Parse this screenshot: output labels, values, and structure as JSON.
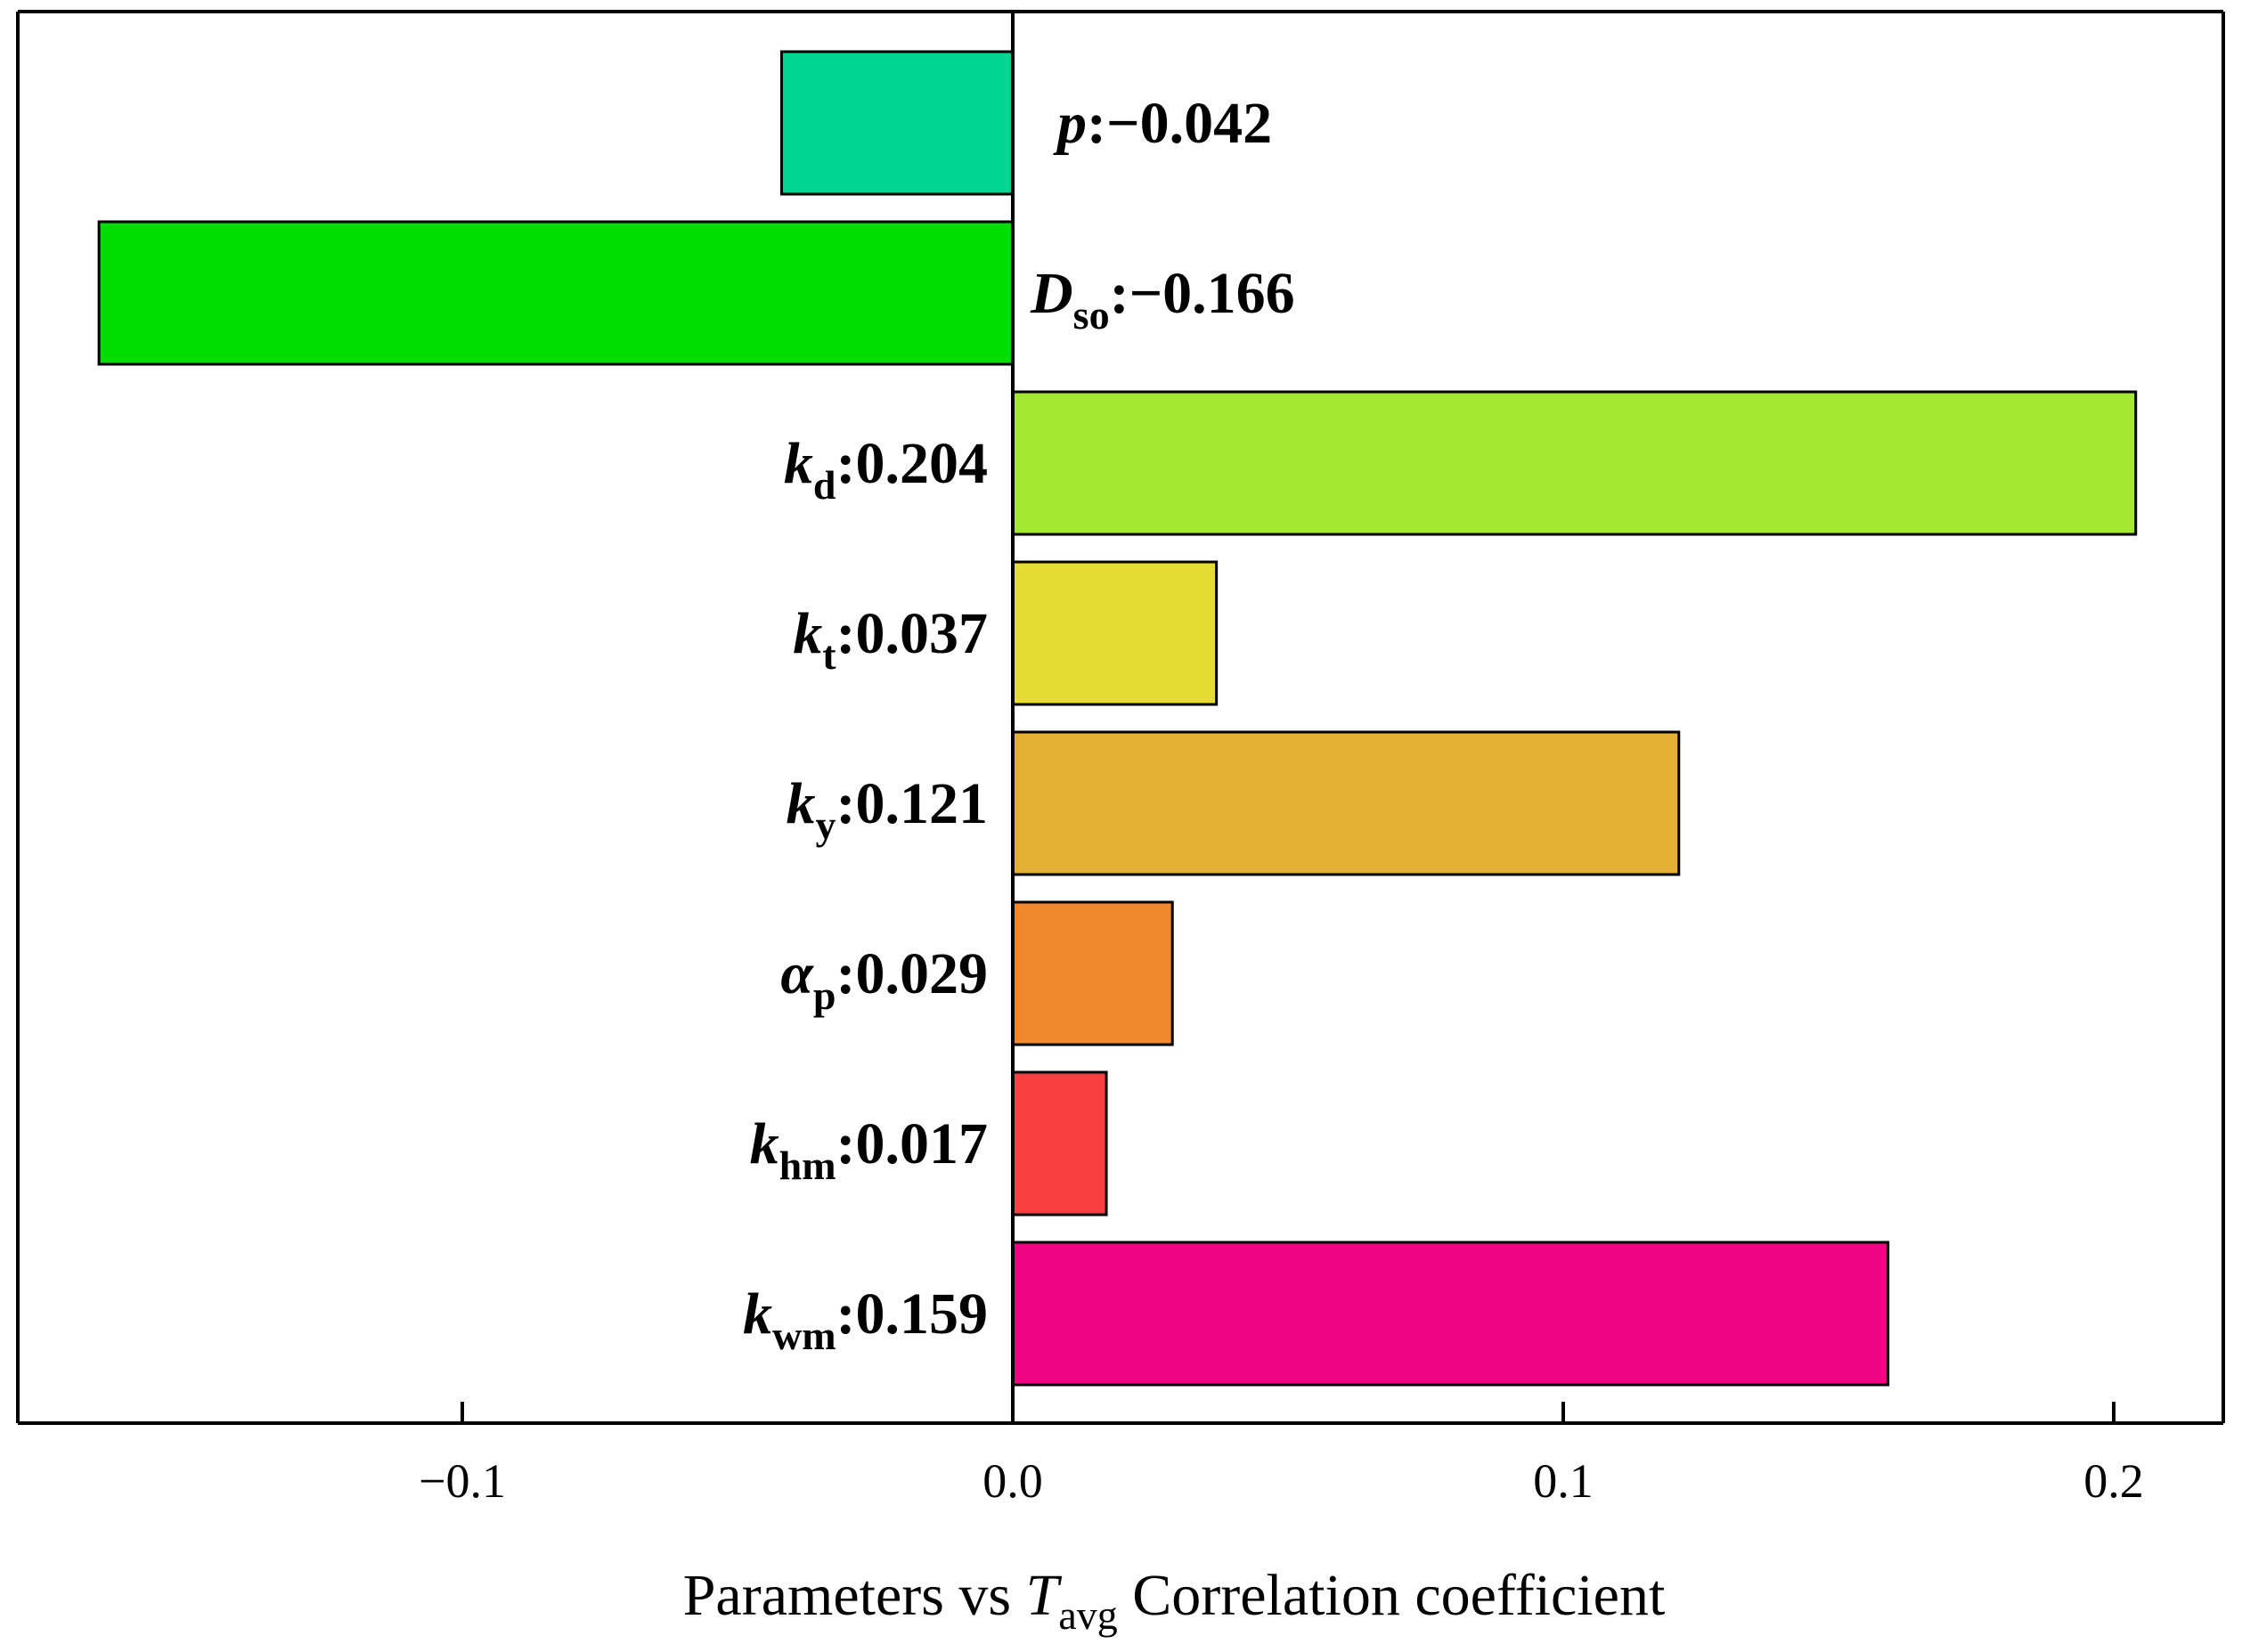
{
  "chart_data": {
    "type": "bar",
    "orientation": "horizontal",
    "title": "",
    "xlabel": {
      "prefix": "Parameters vs ",
      "var_main": "T",
      "var_sub": "avg",
      "suffix": " Correlation coefficient"
    },
    "ylabel": "",
    "xlim": [
      -0.18,
      0.22
    ],
    "xticks": [
      {
        "value": -0.1,
        "label": "−0.1"
      },
      {
        "value": 0.0,
        "label": "0.0"
      },
      {
        "value": 0.1,
        "label": "0.1"
      },
      {
        "value": 0.2,
        "label": "0.2"
      }
    ],
    "grid": false,
    "bars": [
      {
        "id": "p",
        "main": "p",
        "main_italic": true,
        "sub": "",
        "sep": ":",
        "value_label": "−0.042",
        "value": -0.042,
        "color": "#00D68F"
      },
      {
        "id": "D_so",
        "main": "D",
        "main_italic": true,
        "sub": "so",
        "sep": ":",
        "value_label": "−0.166",
        "value": -0.166,
        "color": "#00DC00"
      },
      {
        "id": "k_d",
        "main": "k",
        "main_italic": true,
        "sub": "d",
        "sep": ":",
        "value_label": "0.204",
        "value": 0.204,
        "color": "#A3E833"
      },
      {
        "id": "k_t",
        "main": "k",
        "main_italic": true,
        "sub": "t",
        "sep": ":",
        "value_label": "0.037",
        "value": 0.037,
        "color": "#E4DC33"
      },
      {
        "id": "k_y",
        "main": "k",
        "main_italic": true,
        "sub": "y",
        "sep": ":",
        "value_label": "0.121",
        "value": 0.121,
        "color": "#E3B033"
      },
      {
        "id": "alpha_p",
        "main": "α",
        "main_italic": true,
        "sub": "p",
        "sep": ":",
        "value_label": "0.029",
        "value": 0.029,
        "color": "#F0882E"
      },
      {
        "id": "k_hm",
        "main": "k",
        "main_italic": true,
        "sub": "hm",
        "sep": ":",
        "value_label": "0.017",
        "value": 0.017,
        "color": "#F94040"
      },
      {
        "id": "k_wm",
        "main": "k",
        "main_italic": true,
        "sub": "wm",
        "sep": ":",
        "value_label": "0.159",
        "value": 0.159,
        "color": "#F00484"
      }
    ]
  }
}
